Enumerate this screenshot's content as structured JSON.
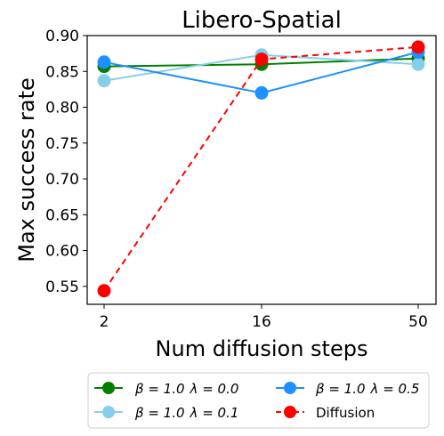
{
  "chart_data": {
    "type": "line",
    "title": "Libero-Spatial",
    "xlabel": "Num diffusion steps",
    "ylabel": "Max success rate",
    "x_ticks": [
      "2",
      "16",
      "50"
    ],
    "ylim": [
      0.525,
      0.9
    ],
    "y_ticks": [
      "0.55",
      "0.60",
      "0.65",
      "0.70",
      "0.75",
      "0.80",
      "0.85",
      "0.90"
    ],
    "y_tick_values": [
      0.55,
      0.6,
      0.65,
      0.7,
      0.75,
      0.8,
      0.85,
      0.9
    ],
    "grid": false,
    "legend_placement": "below",
    "series": [
      {
        "name": "β = 1.0 λ = 0.0",
        "color": "#008000",
        "dash": false,
        "values": [
          0.857,
          0.86,
          0.868
        ]
      },
      {
        "name": "β = 1.0 λ = 0.1",
        "color": "#87ceeb",
        "dash": false,
        "values": [
          0.837,
          0.873,
          0.86
        ]
      },
      {
        "name": "β = 1.0 λ = 0.5",
        "color": "#1e90ff",
        "dash": false,
        "values": [
          0.863,
          0.82,
          0.877
        ]
      },
      {
        "name": "Diffusion",
        "color": "#ff0000",
        "dash": true,
        "values": [
          0.544,
          0.867,
          0.884
        ]
      }
    ],
    "legend": [
      {
        "beta": "β = 1.0",
        "lambda": "λ = 0.0"
      },
      {
        "beta": "β = 1.0",
        "lambda": "λ = 0.5"
      },
      {
        "beta": "β = 1.0",
        "lambda": "λ = 0.1"
      },
      {
        "plain": "Diffusion"
      }
    ]
  }
}
